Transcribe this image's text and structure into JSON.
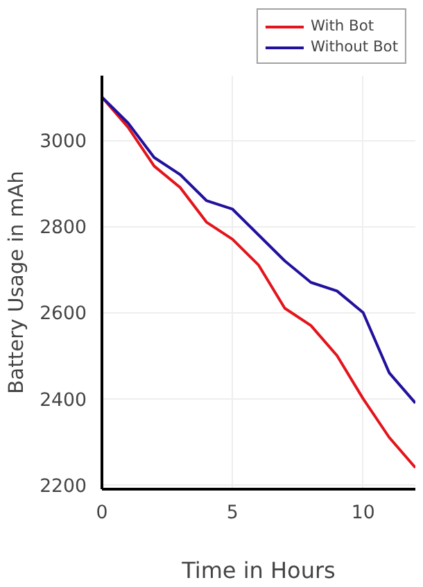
{
  "chart_data": {
    "type": "line",
    "xlabel": "Time in Hours",
    "ylabel": "Battery Usage in mAh",
    "x": [
      0,
      1,
      2,
      3,
      4,
      5,
      6,
      7,
      8,
      9,
      10,
      11,
      12
    ],
    "series": [
      {
        "name": "With Bot",
        "color": "#e3141c",
        "values": [
          3100,
          3030,
          2940,
          2890,
          2810,
          2770,
          2710,
          2610,
          2570,
          2500,
          2400,
          2310,
          2240
        ]
      },
      {
        "name": "Without Bot",
        "color": "#21119c",
        "values": [
          3100,
          3040,
          2960,
          2920,
          2860,
          2840,
          2780,
          2720,
          2670,
          2650,
          2600,
          2460,
          2390
        ]
      }
    ],
    "xlim": [
      0,
      12
    ],
    "ylim": [
      2190,
      3150
    ],
    "xticks": [
      0,
      5,
      10
    ],
    "yticks": [
      2200,
      2400,
      2600,
      2800,
      3000
    ],
    "grid": true,
    "legend": "top right",
    "marker": "none",
    "line_style": "solid"
  }
}
